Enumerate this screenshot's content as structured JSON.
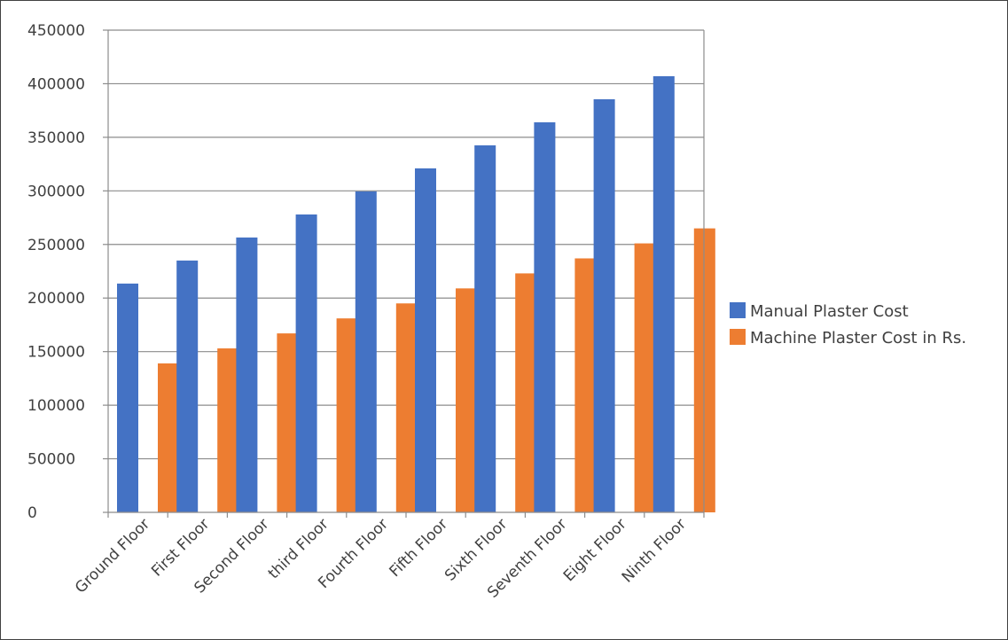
{
  "chart_data": {
    "type": "bar",
    "categories": [
      "Ground Floor",
      "First Floor",
      "Second Floor",
      "third Floor",
      "Fourth Floor",
      "Fifth Floor",
      "Sixth Floor",
      "Seventh Floor",
      "Eight Floor",
      "Ninth Floor"
    ],
    "series": [
      {
        "name": "Manual Plaster Cost",
        "color": "#4472C4",
        "values": [
          213500,
          235000,
          256500,
          278000,
          299500,
          321000,
          342500,
          364000,
          385500,
          407000
        ]
      },
      {
        "name": "Machine Plaster Cost in Rs.",
        "color": "#ED7D31",
        "values": [
          139000,
          153000,
          167000,
          181000,
          195000,
          209000,
          223000,
          237000,
          251000,
          265000
        ]
      }
    ],
    "y_ticks": [
      "0",
      "50000",
      "100000",
      "150000",
      "200000",
      "250000",
      "300000",
      "350000",
      "400000",
      "450000"
    ],
    "ylim": [
      0,
      450000
    ],
    "grid": true,
    "legend_position": "right",
    "title": "",
    "xlabel": "",
    "ylabel": ""
  }
}
